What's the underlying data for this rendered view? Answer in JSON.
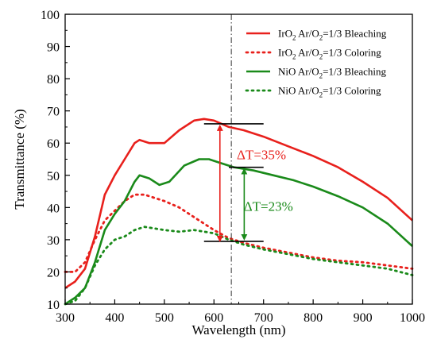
{
  "chart_data": {
    "type": "line",
    "xlabel": "Wavelength (nm)",
    "ylabel": "Transmittance (%)",
    "xlim": [
      300,
      1000
    ],
    "ylim": [
      10,
      100
    ],
    "xticks": [
      300,
      400,
      500,
      600,
      700,
      800,
      900,
      1000
    ],
    "yticks": [
      10,
      20,
      30,
      40,
      50,
      60,
      70,
      80,
      90,
      100
    ],
    "grid": false,
    "legend_position": "top-right",
    "colors": {
      "red": "#e8201c",
      "green": "#1a8a1a"
    },
    "series": [
      {
        "name": "IrO2 Ar/O2=1/3 Bleaching",
        "legend_label": {
          "main": "IrO",
          "sub1": "2",
          "mid": " Ar/O",
          "sub2": "2",
          "tail": "=1/3  Bleaching"
        },
        "color": "#e8201c",
        "style": "solid",
        "x": [
          300,
          320,
          340,
          360,
          380,
          400,
          420,
          440,
          450,
          470,
          500,
          530,
          560,
          580,
          600,
          630,
          660,
          700,
          750,
          800,
          850,
          900,
          950,
          1000
        ],
        "y": [
          15,
          17,
          21,
          31,
          44,
          50,
          55,
          60,
          61,
          60,
          60,
          64,
          67,
          67.5,
          67,
          65,
          64,
          62,
          59,
          56,
          52.5,
          48,
          43,
          36
        ]
      },
      {
        "name": "IrO2 Ar/O2=1/3 Coloring",
        "legend_label": {
          "main": "IrO",
          "sub1": "2",
          "mid": " Ar/O",
          "sub2": "2",
          "tail": "=1/3  Coloring"
        },
        "color": "#e8201c",
        "style": "dotted",
        "x": [
          300,
          320,
          340,
          360,
          380,
          400,
          420,
          440,
          460,
          480,
          500,
          530,
          560,
          580,
          600,
          630,
          660,
          700,
          750,
          800,
          850,
          900,
          950,
          1000
        ],
        "y": [
          20,
          20,
          23,
          30,
          36,
          39,
          42,
          44,
          44,
          43,
          42,
          40,
          37,
          35,
          33,
          30.5,
          29,
          27.5,
          26,
          24.5,
          23.5,
          23,
          22,
          21
        ]
      },
      {
        "name": "NiO Ar/O2=1/3 Bleaching",
        "legend_label": {
          "main": "NiO",
          "sub1": "",
          "mid": "  Ar/O",
          "sub2": "2",
          "tail": "=1/3  Bleaching"
        },
        "color": "#1a8a1a",
        "style": "solid",
        "x": [
          300,
          320,
          340,
          360,
          380,
          400,
          420,
          440,
          450,
          470,
          490,
          510,
          540,
          570,
          590,
          610,
          640,
          680,
          720,
          760,
          800,
          850,
          900,
          950,
          1000
        ],
        "y": [
          10,
          12,
          15,
          23,
          33,
          38,
          42,
          48,
          50,
          49,
          47,
          48,
          53,
          55,
          55,
          54,
          52.5,
          51.5,
          50,
          48.5,
          46.5,
          43.5,
          40,
          35,
          28
        ]
      },
      {
        "name": "NiO Ar/O2=1/3 Coloring",
        "legend_label": {
          "main": "NiO",
          "sub1": "",
          "mid": "  Ar/O",
          "sub2": "2",
          "tail": "=1/3  Coloring"
        },
        "color": "#1a8a1a",
        "style": "dotted",
        "x": [
          300,
          320,
          340,
          360,
          380,
          400,
          420,
          440,
          460,
          480,
          500,
          530,
          560,
          600,
          630,
          660,
          700,
          750,
          800,
          850,
          900,
          950,
          1000
        ],
        "y": [
          10,
          11,
          15,
          22,
          27,
          30,
          31,
          33,
          34,
          33.5,
          33,
          32.5,
          33,
          32,
          30,
          28.5,
          27,
          25.5,
          24,
          23,
          22,
          21,
          19
        ]
      }
    ],
    "reference_line": {
      "x": 635,
      "style": "dash-dot"
    },
    "annotations": [
      {
        "text": "ΔT=35%",
        "color": "#e8201c",
        "x": 646,
        "y": 55,
        "arrow_x": 612,
        "arrow_y": [
          29,
          66
        ]
      },
      {
        "text": "ΔT=23%",
        "color": "#1a8a1a",
        "x": 660,
        "y": 39,
        "arrow_x": 661,
        "arrow_y": [
          29.5,
          52.5
        ]
      }
    ],
    "hlines": [
      {
        "x": [
          580,
          700
        ],
        "y": 66
      },
      {
        "x": [
          580,
          700
        ],
        "y": 29.5
      },
      {
        "x": [
          630,
          700
        ],
        "y": 52.5
      }
    ]
  }
}
